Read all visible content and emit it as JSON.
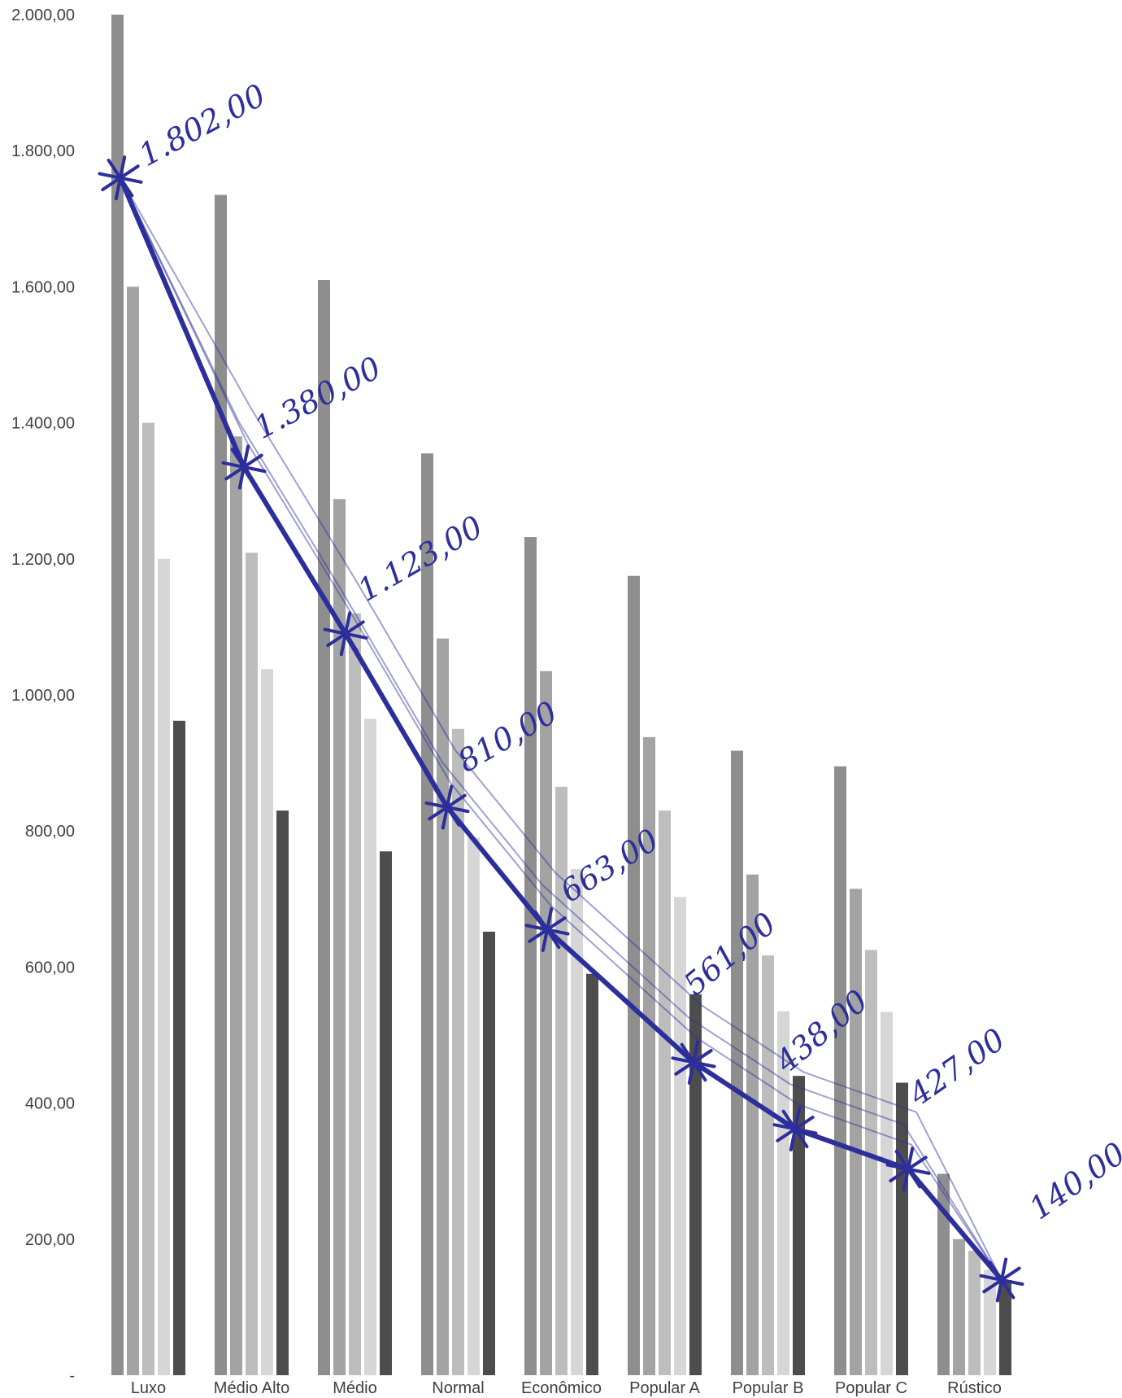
{
  "chart_data": {
    "type": "bar",
    "categories": [
      "Luxo",
      "Médio Alto",
      "Médio",
      "Normal",
      "Econômico",
      "Popular A",
      "Popular B",
      "Popular C",
      "Rústico"
    ],
    "series": [
      {
        "values": [
          2000,
          1735,
          1610,
          1355,
          1232,
          1175,
          918,
          895,
          296
        ],
        "color": "#8e8e8e"
      },
      {
        "values": [
          1600,
          1380,
          1288,
          1083,
          1035,
          938,
          736,
          715,
          200
        ],
        "color": "#a3a3a3"
      },
      {
        "values": [
          1400,
          1209,
          1120,
          950,
          865,
          830,
          617,
          625,
          183
        ],
        "color": "#bdbdbd"
      },
      {
        "values": [
          1200,
          1038,
          965,
          790,
          744,
          703,
          535,
          534,
          155
        ],
        "color": "#d6d6d6"
      },
      {
        "values": [
          962,
          830,
          770,
          652,
          590,
          560,
          440,
          430,
          140
        ],
        "color": "#4d4d4d"
      }
    ],
    "line": {
      "type": "line",
      "values": [
        1760,
        1335,
        1090,
        835,
        655,
        460,
        362,
        303,
        140
      ],
      "color": "#2c2e9c"
    },
    "annotations": [
      "1.802,00",
      "1.380,00",
      "1.123,00",
      "810,00",
      "663,00",
      "561,00",
      "438,00",
      "427,00",
      "140,00"
    ],
    "y_ticks": [
      {
        "value": 2000,
        "label": "2.000,00"
      },
      {
        "value": 1800,
        "label": "1.800,00"
      },
      {
        "value": 1600,
        "label": "1.600,00"
      },
      {
        "value": 1400,
        "label": "1.400,00"
      },
      {
        "value": 1200,
        "label": "1.200,00"
      },
      {
        "value": 1000,
        "label": "1.000,00"
      },
      {
        "value": 800,
        "label": "800,00"
      },
      {
        "value": 600,
        "label": "600,00"
      },
      {
        "value": 400,
        "label": "400,00"
      },
      {
        "value": 200,
        "label": "200,00"
      },
      {
        "value": 0,
        "label": "-"
      }
    ],
    "ylim": [
      0,
      2000
    ],
    "title": "",
    "xlabel": "",
    "ylabel": "",
    "grid": false,
    "legend": false
  }
}
